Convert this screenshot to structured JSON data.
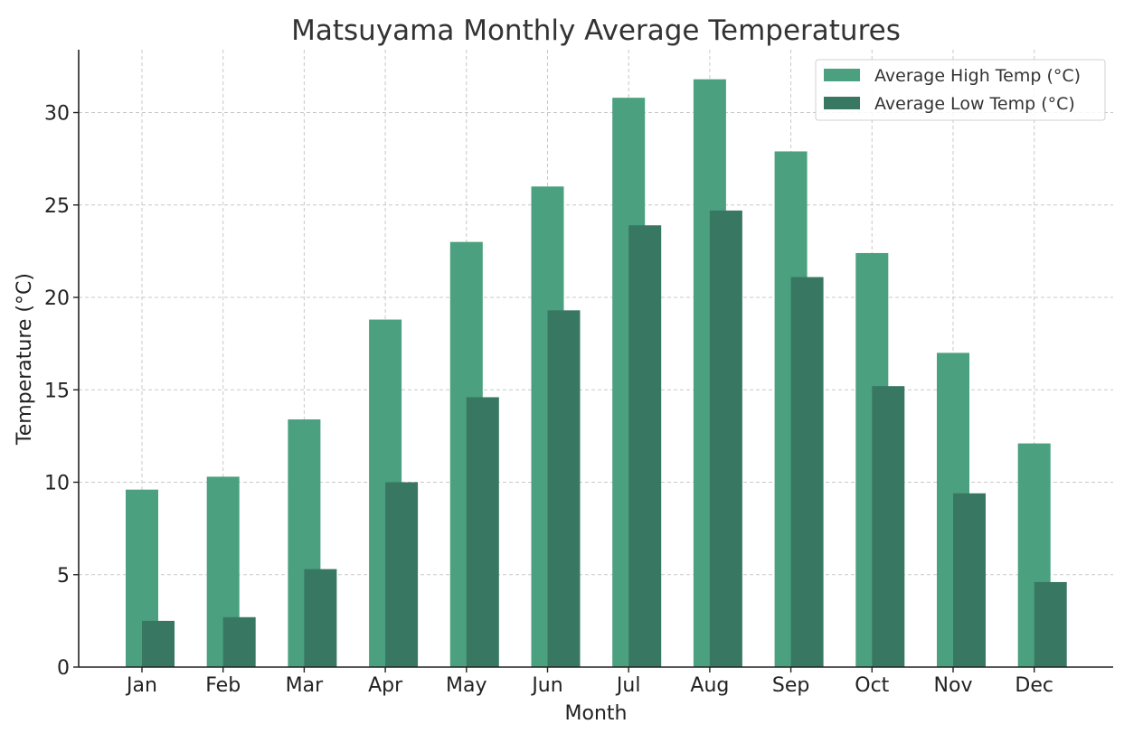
{
  "chart_data": {
    "type": "bar",
    "title": "Matsuyama Monthly Average Temperatures",
    "xlabel": "Month",
    "ylabel": "Temperature (°C)",
    "categories": [
      "Jan",
      "Feb",
      "Mar",
      "Apr",
      "May",
      "Jun",
      "Jul",
      "Aug",
      "Sep",
      "Oct",
      "Nov",
      "Dec"
    ],
    "series": [
      {
        "name": "Average High Temp (°C)",
        "color": "#4aa07f",
        "values": [
          9.6,
          10.3,
          13.4,
          18.8,
          23.0,
          26.0,
          30.8,
          31.8,
          27.9,
          22.4,
          17.0,
          12.1
        ]
      },
      {
        "name": "Average Low Temp (°C)",
        "color": "#387862",
        "values": [
          2.5,
          2.7,
          5.3,
          10.0,
          14.6,
          19.3,
          23.9,
          24.7,
          21.1,
          15.2,
          9.4,
          4.6
        ]
      }
    ],
    "ylim": [
      0,
      33.4
    ],
    "yticks": [
      0,
      5,
      10,
      15,
      20,
      25,
      30
    ],
    "grid": true,
    "legend_position": "top-right"
  }
}
